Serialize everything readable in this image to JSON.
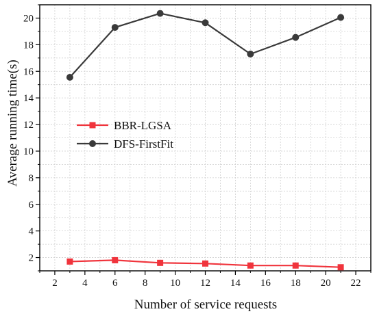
{
  "chart_data": {
    "type": "line",
    "title": "",
    "xlabel": "Number of service requests",
    "ylabel": "Average running time(s)",
    "x": [
      3,
      6,
      9,
      12,
      15,
      18,
      21
    ],
    "xlim": [
      1,
      23
    ],
    "ylim": [
      1,
      21
    ],
    "xticks": [
      2,
      4,
      6,
      8,
      10,
      12,
      14,
      16,
      18,
      20,
      22
    ],
    "yticks": [
      2,
      4,
      6,
      8,
      10,
      12,
      14,
      16,
      18,
      20
    ],
    "grid": true,
    "legend_position": "center-left",
    "series": [
      {
        "name": "BBR-LGSA",
        "values": [
          1.7,
          1.8,
          1.6,
          1.55,
          1.4,
          1.4,
          1.27
        ],
        "color": "#f0343c",
        "marker": "square"
      },
      {
        "name": "DFS-FirstFit",
        "values": [
          15.55,
          19.3,
          20.35,
          19.65,
          17.3,
          18.55,
          20.05
        ],
        "color": "#3a3a3a",
        "marker": "circle"
      }
    ]
  }
}
